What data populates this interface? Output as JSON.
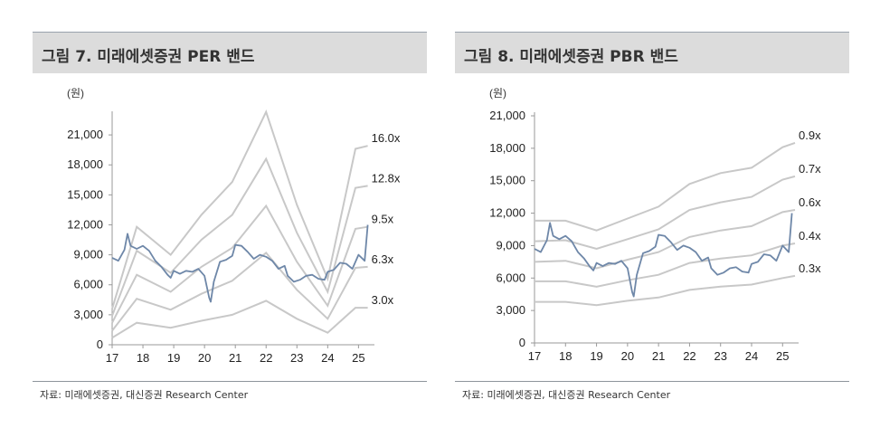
{
  "charts": [
    {
      "title": "그림 7. 미래에셋증권 PER 밴드",
      "source": "자료: 미래에셋증권, 대신증권 Research Center",
      "chart_data": {
        "type": "line",
        "unit_label": "(원)",
        "x_ticks": [
          "17",
          "18",
          "19",
          "20",
          "21",
          "22",
          "23",
          "24",
          "25"
        ],
        "xlim": [
          2017,
          2025.4
        ],
        "ylim": [
          0,
          23000
        ],
        "y_ticks": [
          0,
          3000,
          6000,
          9000,
          12000,
          15000,
          18000,
          21000
        ],
        "y_tick_labels": [
          "0",
          "3,000",
          "6,000",
          "9,000",
          "12,000",
          "15,000",
          "18,000",
          "21,000"
        ],
        "band_labels": [
          "16.0x",
          "12.8x",
          "9.5x",
          "6.3x",
          "3.0x"
        ],
        "band_x": [
          2017.0,
          2017.8,
          2018.9,
          2019.9,
          2020.9,
          2022.0,
          2023.0,
          2024.0,
          2024.9,
          2025.3
        ],
        "bands": [
          {
            "name": "16.0x",
            "values": [
              3600,
              11800,
              9000,
              13000,
              16300,
              23300,
              14000,
              6600,
              19600,
              19900
            ]
          },
          {
            "name": "12.8x",
            "values": [
              2900,
              9400,
              7200,
              10500,
              13000,
              18600,
              11200,
              5300,
              15700,
              15900
            ]
          },
          {
            "name": "9.5x",
            "values": [
              2200,
              7000,
              5300,
              7800,
              9700,
              13900,
              8300,
              3900,
              11600,
              11800
            ]
          },
          {
            "name": "6.3x",
            "values": [
              1400,
              4600,
              3500,
              5100,
              6400,
              9200,
              5500,
              2600,
              7700,
              7800
            ]
          },
          {
            "name": "3.0x",
            "values": [
              700,
              2200,
              1700,
              2400,
              3000,
              4400,
              2600,
              1200,
              3700,
              3700
            ]
          }
        ],
        "price": {
          "x": [
            2017.0,
            2017.2,
            2017.4,
            2017.5,
            2017.6,
            2017.8,
            2018.0,
            2018.2,
            2018.4,
            2018.6,
            2018.8,
            2018.9,
            2019.0,
            2019.2,
            2019.4,
            2019.6,
            2019.8,
            2020.0,
            2020.15,
            2020.2,
            2020.3,
            2020.5,
            2020.7,
            2020.9,
            2021.0,
            2021.2,
            2021.4,
            2021.6,
            2021.8,
            2022.0,
            2022.2,
            2022.4,
            2022.6,
            2022.7,
            2022.9,
            2023.1,
            2023.3,
            2023.5,
            2023.7,
            2023.9,
            2024.0,
            2024.2,
            2024.4,
            2024.6,
            2024.8,
            2025.0,
            2025.2,
            2025.3
          ],
          "values": [
            8700,
            8400,
            9500,
            11100,
            9900,
            9600,
            9900,
            9400,
            8400,
            7800,
            7000,
            6700,
            7400,
            7100,
            7400,
            7300,
            7600,
            6900,
            4700,
            4300,
            6300,
            8300,
            8500,
            8900,
            10000,
            9900,
            9300,
            8600,
            9000,
            8800,
            8400,
            7600,
            7900,
            6900,
            6300,
            6500,
            6900,
            7000,
            6600,
            6500,
            7300,
            7500,
            8200,
            8100,
            7600,
            9000,
            8400,
            12000
          ]
        }
      }
    },
    {
      "title": "그림 8. 미래에셋증권 PBR 밴드",
      "source": "자료: 미래에셋증권, 대신증권 Research Center",
      "chart_data": {
        "type": "line",
        "unit_label": "(원)",
        "x_ticks": [
          "17",
          "18",
          "19",
          "20",
          "21",
          "22",
          "23",
          "24",
          "25"
        ],
        "xlim": [
          2017,
          2025.4
        ],
        "ylim": [
          0,
          21000
        ],
        "y_ticks": [
          0,
          3000,
          6000,
          9000,
          12000,
          15000,
          18000,
          21000
        ],
        "y_tick_labels": [
          "0",
          "3,000",
          "6,000",
          "9,000",
          "12,000",
          "15,000",
          "18,000",
          "21,000"
        ],
        "band_labels": [
          "0.9x",
          "0.7x",
          "0.6x",
          "0.4x",
          "0.3x"
        ],
        "band_x": [
          2017.0,
          2018.0,
          2019.0,
          2020.0,
          2021.0,
          2022.0,
          2023.0,
          2024.0,
          2025.0,
          2025.4
        ],
        "bands": [
          {
            "name": "0.9x",
            "values": [
              11300,
              11300,
              10400,
              11500,
              12600,
              14700,
              15700,
              16200,
              18100,
              18500
            ]
          },
          {
            "name": "0.7x",
            "values": [
              9400,
              9500,
              8700,
              9600,
              10500,
              12300,
              13000,
              13500,
              15100,
              15400
            ]
          },
          {
            "name": "0.6x",
            "values": [
              7500,
              7600,
              6900,
              7700,
              8400,
              9800,
              10400,
              10800,
              12100,
              12300
            ]
          },
          {
            "name": "0.4x",
            "values": [
              5700,
              5700,
              5200,
              5800,
              6300,
              7400,
              7800,
              8100,
              9000,
              9200
            ]
          },
          {
            "name": "0.3x",
            "values": [
              3800,
              3800,
              3500,
              3900,
              4200,
              4900,
              5200,
              5400,
              6000,
              6200
            ]
          }
        ],
        "price": {
          "x": [
            2017.0,
            2017.2,
            2017.4,
            2017.5,
            2017.6,
            2017.8,
            2018.0,
            2018.2,
            2018.4,
            2018.6,
            2018.8,
            2018.9,
            2019.0,
            2019.2,
            2019.4,
            2019.6,
            2019.8,
            2020.0,
            2020.15,
            2020.2,
            2020.3,
            2020.5,
            2020.7,
            2020.9,
            2021.0,
            2021.2,
            2021.4,
            2021.6,
            2021.8,
            2022.0,
            2022.2,
            2022.4,
            2022.6,
            2022.7,
            2022.9,
            2023.1,
            2023.3,
            2023.5,
            2023.7,
            2023.9,
            2024.0,
            2024.2,
            2024.4,
            2024.6,
            2024.8,
            2025.0,
            2025.2,
            2025.3
          ],
          "values": [
            8700,
            8400,
            9500,
            11100,
            9900,
            9600,
            9900,
            9400,
            8400,
            7800,
            7000,
            6700,
            7400,
            7100,
            7400,
            7300,
            7600,
            6900,
            4700,
            4300,
            6300,
            8300,
            8500,
            8900,
            10000,
            9900,
            9300,
            8600,
            9000,
            8800,
            8400,
            7600,
            7900,
            6900,
            6300,
            6500,
            6900,
            7000,
            6600,
            6500,
            7300,
            7500,
            8200,
            8100,
            7600,
            9000,
            8400,
            12000
          ]
        }
      }
    }
  ]
}
